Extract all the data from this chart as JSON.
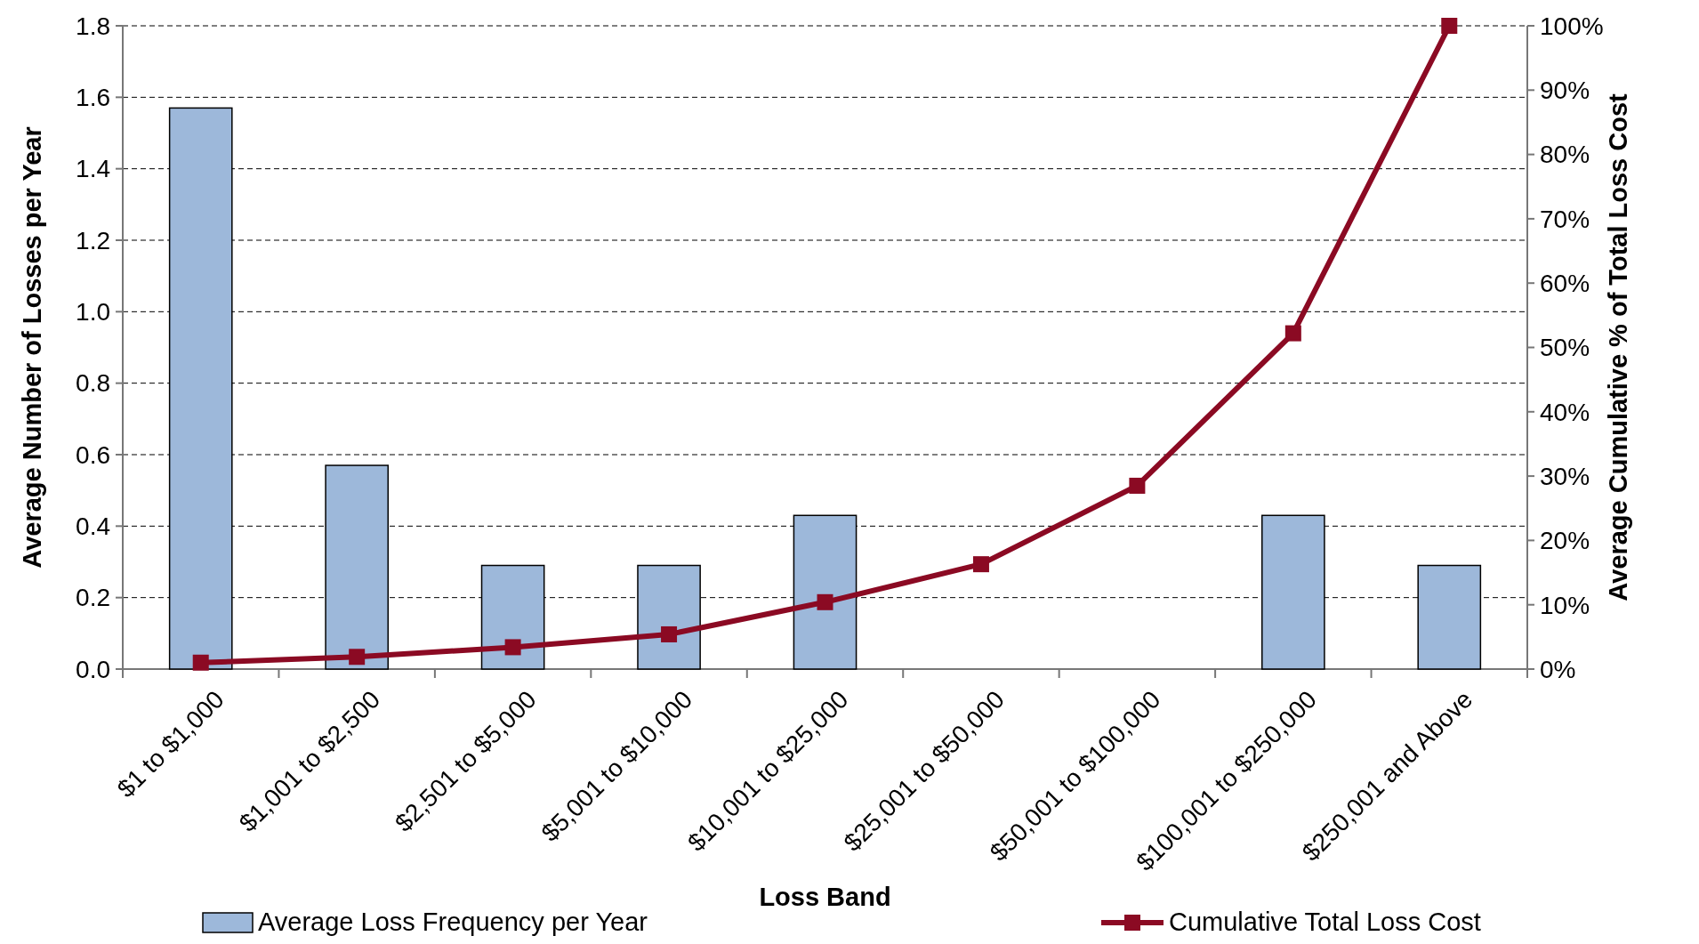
{
  "chart_data": {
    "type": "bar",
    "xlabel": "Loss Band",
    "ylabel": "Average Number of Losses per Year",
    "y2label": "Average Cumulative % of Total Loss Cost",
    "categories": [
      "$1 to $1,000",
      "$1,001 to $2,500",
      "$2,501 to $5,000",
      "$5,001 to $10,000",
      "$10,001 to $25,000",
      "$25,001 to $50,000",
      "$50,001 to $100,000",
      "$100,001 to $250,000",
      "$250,001 and Above"
    ],
    "series": [
      {
        "name": "Average Loss Frequency per Year",
        "color": "#9db8da",
        "values": [
          1.57,
          0.57,
          0.29,
          0.29,
          0.43,
          0,
          0,
          0.43,
          0.29
        ]
      },
      {
        "name": "Cumulative Total Loss Cost",
        "type": "line",
        "axis": "y2",
        "color": "#8b0a23",
        "marker": "square",
        "values": [
          1.0,
          1.9,
          3.4,
          5.4,
          10.4,
          16.3,
          28.5,
          52.2,
          100
        ]
      }
    ],
    "ylim": [
      0,
      1.8
    ],
    "yticks": [
      {
        "value": 0,
        "label": "0.0"
      },
      {
        "value": 0.2,
        "label": "0.2"
      },
      {
        "value": 0.4,
        "label": "0.4"
      },
      {
        "value": 0.6,
        "label": "0.6"
      },
      {
        "value": 0.8,
        "label": "0.8"
      },
      {
        "value": 1,
        "label": "1.0"
      },
      {
        "value": 1.2,
        "label": "1.2"
      },
      {
        "value": 1.4,
        "label": "1.4"
      },
      {
        "value": 1.6,
        "label": "1.6"
      },
      {
        "value": 1.8,
        "label": "1.8"
      }
    ],
    "y2lim": [
      0,
      100
    ],
    "y2ticks": [
      {
        "value": 0,
        "label": "0%"
      },
      {
        "value": 10,
        "label": "10%"
      },
      {
        "value": 20,
        "label": "20%"
      },
      {
        "value": 30,
        "label": "30%"
      },
      {
        "value": 40,
        "label": "40%"
      },
      {
        "value": 50,
        "label": "50%"
      },
      {
        "value": 60,
        "label": "60%"
      },
      {
        "value": 70,
        "label": "70%"
      },
      {
        "value": 80,
        "label": "80%"
      },
      {
        "value": 90,
        "label": "90%"
      },
      {
        "value": 100,
        "label": "100%"
      }
    ],
    "grid": "y",
    "legend": "bottom"
  }
}
